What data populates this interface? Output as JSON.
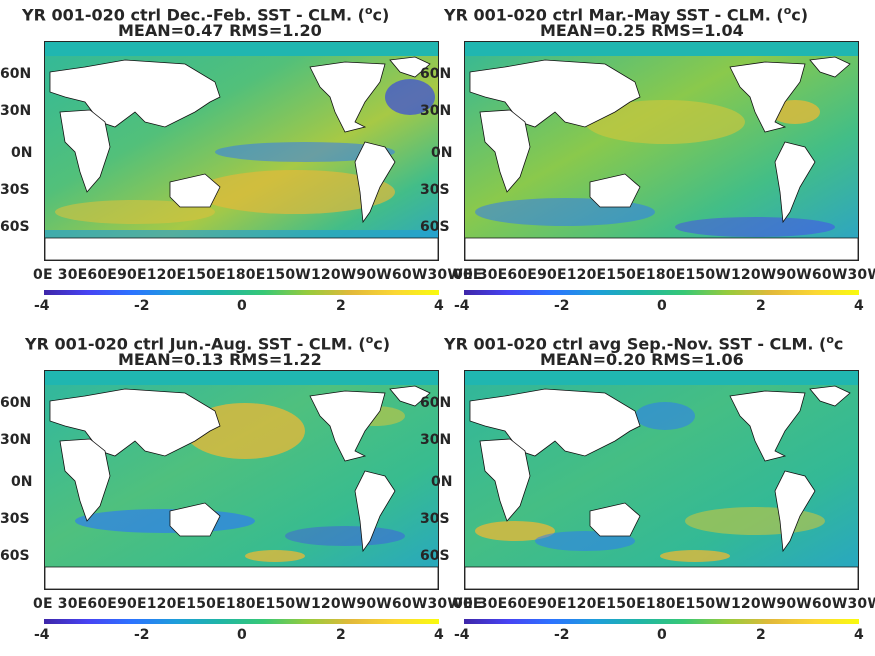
{
  "panels": [
    {
      "title": "YR 001-020 ctrl  Dec.-Feb. SST - CLM. (",
      "title_tail": "c)",
      "stats": "MEAN=0.47   RMS=1.20"
    },
    {
      "title": "YR 001-020 ctrl Mar.-May SST - CLM. (",
      "title_tail": "c)",
      "stats": "MEAN=0.25   RMS=1.04"
    },
    {
      "title": "YR 001-020 ctrl Jun.-Aug. SST - CLM. (",
      "title_tail": "c)",
      "stats": "MEAN=0.13   RMS=1.22"
    },
    {
      "title": "YR 001-020 ctrl avg Sep.-Nov. SST - CLM. (",
      "title_tail": "c",
      "stats": "MEAN=0.20   RMS=1.06"
    }
  ],
  "degree_symbol": "o",
  "lat_labels": [
    "60N",
    "30N",
    "0N",
    "30S",
    "60S"
  ],
  "lon_labels": [
    "0E",
    "30E",
    "60E",
    "90E",
    "120E",
    "150E",
    "180E",
    "150W",
    "120W",
    "90W",
    "60W",
    "30W",
    "0E"
  ],
  "lon_label_text": "0E 30E60E90E120E150E180E150W120W90W60W30W0E",
  "colorbar_ticks": [
    "-4",
    "-2",
    "0",
    "2",
    "4"
  ],
  "colorbar_colors": [
    "#3e26a8",
    "#4743f3",
    "#2c73ff",
    "#1e9ddb",
    "#1fb5a6",
    "#37c876",
    "#96cb3d",
    "#e2b93a",
    "#fbd734",
    "#f9fb0e"
  ],
  "colors": {
    "ocean": "#2fb59a",
    "land": "#ffffff",
    "arctic": "#20b6b0"
  }
}
